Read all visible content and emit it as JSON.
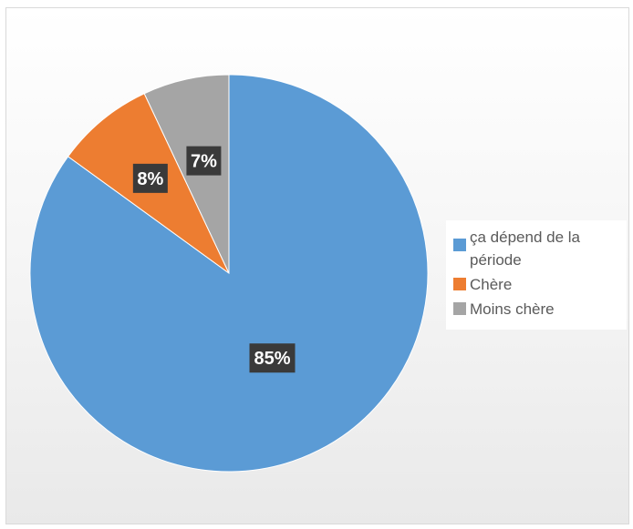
{
  "chart_data": {
    "type": "pie",
    "title": "",
    "categories": [
      "ça dépend de la période",
      "Chère",
      "Moins chère"
    ],
    "values": [
      85,
      8,
      7
    ],
    "data_labels": [
      "85%",
      "8%",
      "7%"
    ],
    "colors": [
      "#5b9bd5",
      "#ed7d31",
      "#a5a5a5"
    ],
    "legend": {
      "placement": "right",
      "entries": [
        "ça dépend de la période",
        "Chère",
        "Moins chère"
      ]
    }
  }
}
